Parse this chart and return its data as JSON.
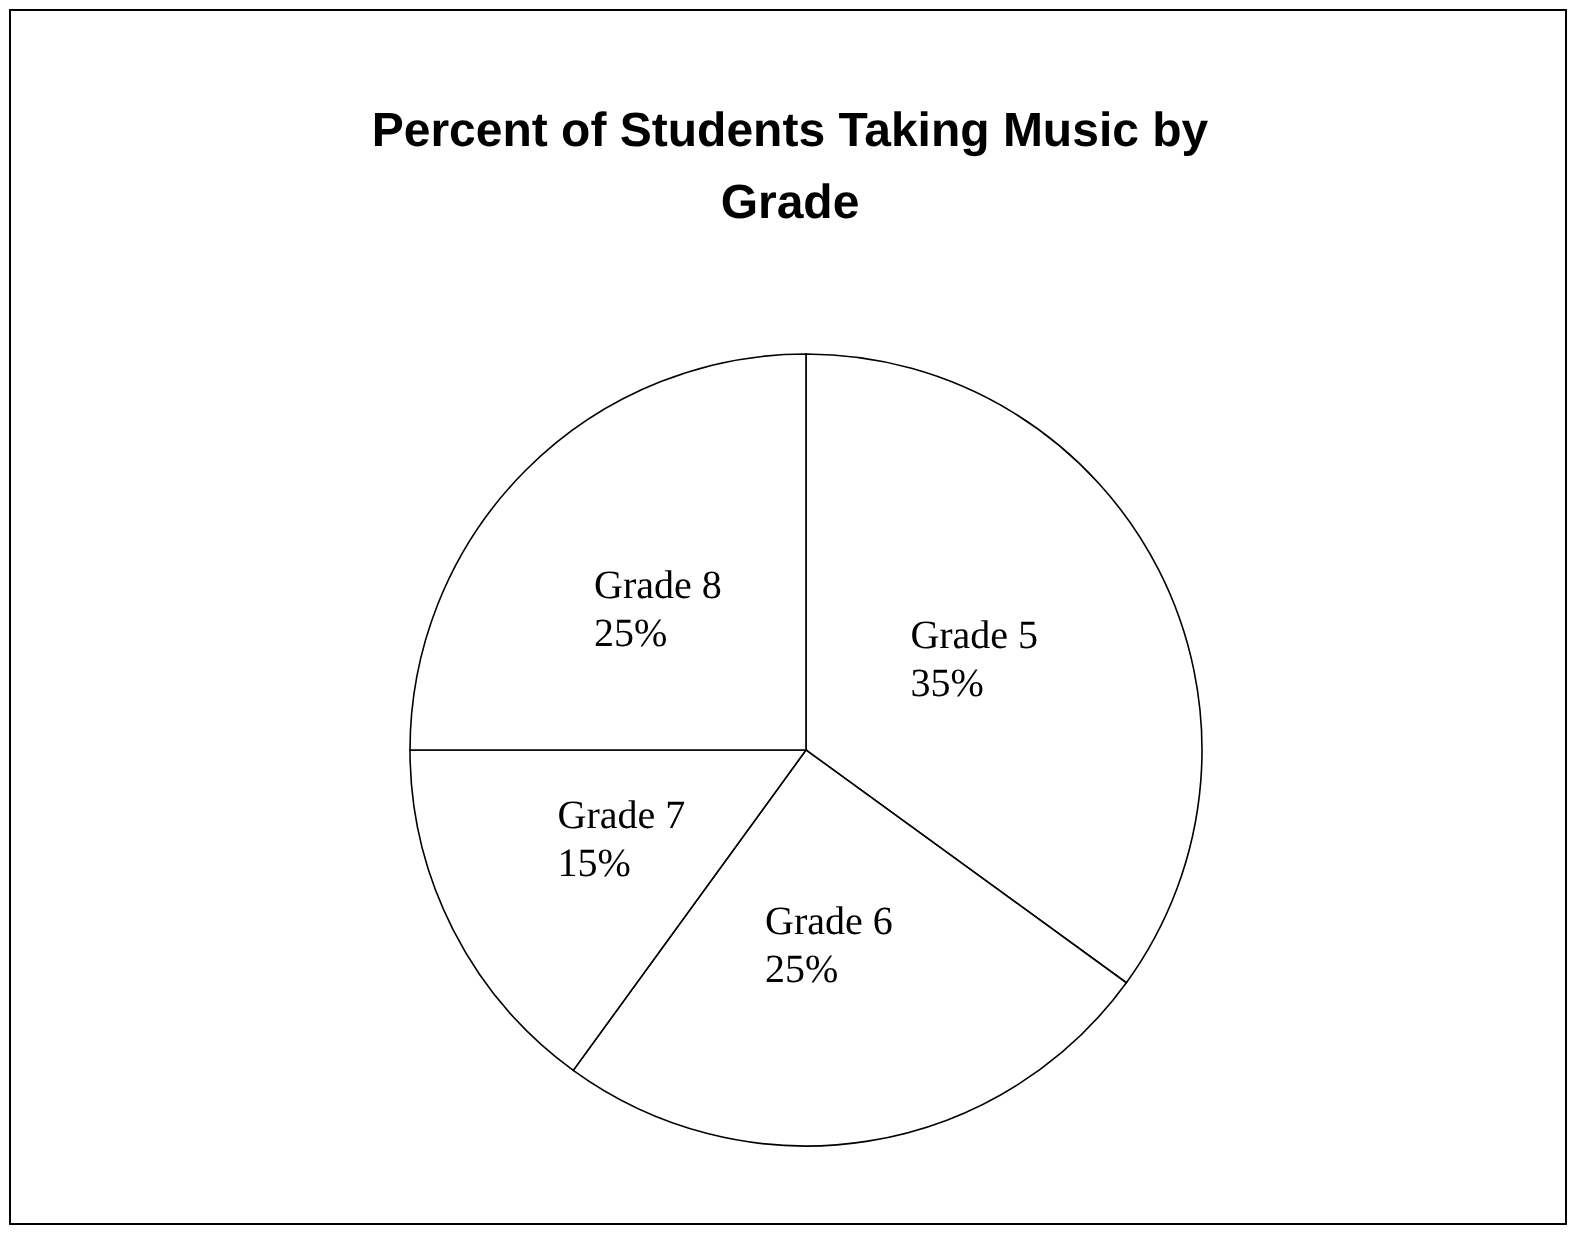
{
  "chart_data": {
    "type": "pie",
    "title": "Percent of Students Taking Music by Grade",
    "categories": [
      "Grade 5",
      "Grade 6",
      "Grade 7",
      "Grade 8"
    ],
    "values": [
      35,
      25,
      15,
      25
    ],
    "value_labels": [
      "35%",
      "25%",
      "15%",
      "25%"
    ],
    "colors": [
      "#ffffff",
      "#ffffff",
      "#ffffff",
      "#ffffff"
    ],
    "legend": false
  }
}
